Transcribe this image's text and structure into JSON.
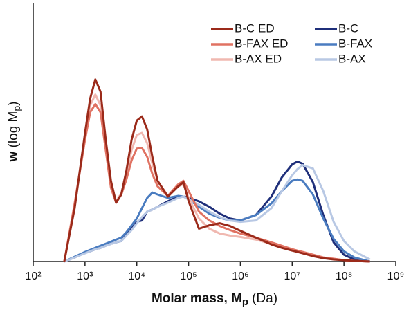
{
  "chart_data": {
    "type": "line",
    "xlabel": {
      "main": "Molar mass, M",
      "sub": "p",
      "unit": "(Da)"
    },
    "ylabel": {
      "main": "w",
      "text": "(log M",
      "sub": "p",
      "end": ")"
    },
    "log_x": true,
    "legend": "upper right",
    "x": [
      398,
      631,
      1000,
      1259,
      1585,
      1995,
      2512,
      3162,
      3981,
      5012,
      6310,
      7943,
      10000,
      12589,
      15849,
      19953,
      25119,
      39811,
      63096,
      79433,
      100000,
      158489,
      251189,
      398107,
      630957,
      1000000,
      1995262,
      3981072,
      6309573,
      10000000,
      12589254,
      15848932,
      25118864,
      39810717,
      63095734,
      100000000,
      158489319,
      316227766
    ],
    "xlim": [
      100,
      1000000000
    ],
    "xticks": [
      {
        "value": 100,
        "label": "10²"
      },
      {
        "value": 1000,
        "label": "10³"
      },
      {
        "value": 10000,
        "label": "10⁴"
      },
      {
        "value": 100000,
        "label": "10⁵"
      },
      {
        "value": 1000000,
        "label": "10⁶"
      },
      {
        "value": 10000000,
        "label": "10⁷"
      },
      {
        "value": 100000000,
        "label": "10⁸"
      },
      {
        "value": 1000000000,
        "label": "10⁹"
      }
    ],
    "ylim": [
      0,
      378
    ],
    "series": [
      {
        "name": "B-C ED",
        "color": "#9b2a1a",
        "values": [
          0,
          78,
          188,
          238,
          266,
          248,
          178,
          118,
          86,
          98,
          133,
          178,
          206,
          212,
          193,
          153,
          118,
          95,
          110,
          116,
          88,
          48,
          53,
          56,
          52,
          45,
          35,
          25,
          20,
          16,
          14,
          12,
          8,
          5,
          3,
          2,
          1,
          0
        ]
      },
      {
        "name": "B-FAX ED",
        "color": "#e07262",
        "values": [
          0,
          85,
          178,
          218,
          230,
          218,
          163,
          108,
          86,
          98,
          120,
          148,
          165,
          166,
          153,
          128,
          110,
          96,
          113,
          118,
          103,
          73,
          60,
          52,
          46,
          41,
          35,
          28,
          23,
          18,
          16,
          14,
          10,
          6,
          4,
          2,
          1,
          0
        ]
      },
      {
        "name": "B-AX ED",
        "color": "#f0b8b0",
        "values": [
          0,
          82,
          183,
          228,
          244,
          228,
          168,
          113,
          88,
          100,
          128,
          163,
          185,
          188,
          173,
          143,
          118,
          96,
          110,
          113,
          93,
          63,
          48,
          41,
          38,
          36,
          32,
          26,
          22,
          18,
          16,
          14,
          10,
          6,
          4,
          2,
          1,
          0
        ]
      },
      {
        "name": "B-C",
        "color": "#1f2f7a",
        "values": [
          0,
          6,
          13,
          15,
          18,
          20,
          23,
          26,
          28,
          30,
          40,
          48,
          58,
          60,
          73,
          76,
          80,
          88,
          95,
          95,
          93,
          88,
          80,
          70,
          63,
          60,
          68,
          95,
          123,
          142,
          146,
          143,
          116,
          68,
          28,
          10,
          3,
          0
        ]
      },
      {
        "name": "B-FAX",
        "color": "#4a7cc0",
        "values": [
          0,
          7,
          14,
          17,
          20,
          23,
          26,
          29,
          32,
          35,
          43,
          53,
          63,
          78,
          93,
          101,
          98,
          93,
          96,
          95,
          91,
          80,
          70,
          64,
          60,
          60,
          68,
          85,
          103,
          118,
          120,
          118,
          98,
          63,
          33,
          15,
          6,
          0
        ]
      },
      {
        "name": "B-AX",
        "color": "#b8c8e4",
        "values": [
          0,
          6,
          12,
          15,
          18,
          20,
          23,
          26,
          28,
          30,
          38,
          46,
          56,
          65,
          73,
          76,
          80,
          86,
          93,
          95,
          91,
          83,
          73,
          65,
          60,
          58,
          60,
          78,
          103,
          126,
          135,
          141,
          136,
          103,
          58,
          30,
          15,
          3
        ]
      }
    ]
  }
}
